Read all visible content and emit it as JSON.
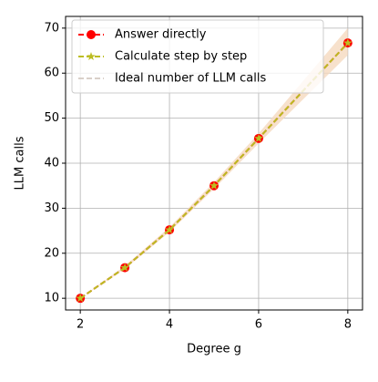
{
  "chart_data": {
    "type": "line",
    "xlabel": "Degree g",
    "ylabel": "LLM calls",
    "x": [
      2,
      3,
      4,
      5,
      6,
      8
    ],
    "series": [
      {
        "name": "Answer directly",
        "color": "#ff0000",
        "marker": "circle",
        "values": [
          10,
          16.8,
          25.2,
          35,
          45.5,
          66.7
        ]
      },
      {
        "name": "Calculate step by step",
        "color": "#bcbd22",
        "marker": "star",
        "values": [
          10,
          16.8,
          25.2,
          35,
          45.5,
          66.7
        ]
      },
      {
        "name": "Ideal number of LLM calls",
        "color": "#d9d0c9",
        "marker": "none",
        "values": [
          10,
          16.8,
          25.2,
          35,
          45.5,
          66.7
        ]
      }
    ],
    "band": {
      "color": "#f5d9bf",
      "lower": [
        10,
        16.5,
        24.7,
        34.3,
        44.4,
        64
      ],
      "upper": [
        10,
        17.2,
        25.8,
        35.8,
        46.6,
        70
      ]
    },
    "xlim": [
      1.67,
      8.33
    ],
    "ylim": [
      7.4,
      72.6
    ],
    "xticks": [
      2,
      4,
      6,
      8
    ],
    "yticks": [
      10,
      20,
      30,
      40,
      50,
      60,
      70
    ],
    "grid": true,
    "legend": "upper left"
  }
}
